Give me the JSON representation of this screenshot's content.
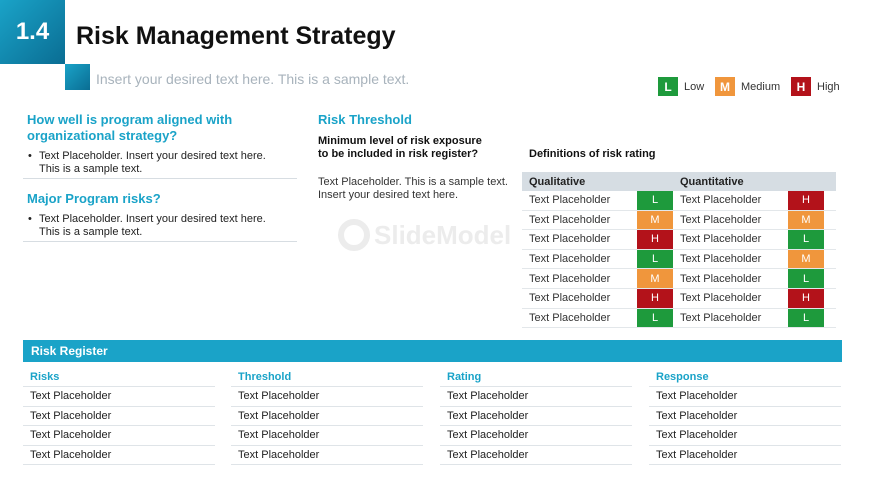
{
  "header": {
    "section_number": "1.4",
    "title": "Risk Management Strategy",
    "subtitle": "Insert your desired text here. This is a sample text."
  },
  "legend": [
    {
      "code": "L",
      "label": "Low",
      "color": "#1e9a3c"
    },
    {
      "code": "M",
      "label": "Medium",
      "color": "#f0963c"
    },
    {
      "code": "H",
      "label": "High",
      "color": "#b3121a"
    }
  ],
  "left": {
    "q1_heading": "How well is program aligned with organizational strategy?",
    "q1_text_line1": "Text Placeholder. Insert your desired text here.",
    "q1_text_line2": "This is a sample text.",
    "q2_heading": "Major Program risks?",
    "q2_text_line1": "Text Placeholder. Insert your desired text here.",
    "q2_text_line2": "This is a sample text."
  },
  "threshold": {
    "heading": "Risk Threshold",
    "sub_line1": "Minimum level of risk exposure",
    "sub_line2": "to be included in risk register?",
    "text_line1": "Text Placeholder. This is a sample text.",
    "text_line2": "Insert your desired text here."
  },
  "watermark": "SlideModel",
  "definitions": {
    "heading": "Definitions of risk rating",
    "col_qualitative": "Qualitative",
    "col_quantitative": "Quantitative",
    "rows": [
      {
        "qual_text": "Text Placeholder",
        "qual_rating": "L",
        "quant_text": "Text Placeholder",
        "quant_rating": "H"
      },
      {
        "qual_text": "Text Placeholder",
        "qual_rating": "M",
        "quant_text": "Text Placeholder",
        "quant_rating": "M"
      },
      {
        "qual_text": "Text Placeholder",
        "qual_rating": "H",
        "quant_text": "Text Placeholder",
        "quant_rating": "L"
      },
      {
        "qual_text": "Text Placeholder",
        "qual_rating": "L",
        "quant_text": "Text Placeholder",
        "quant_rating": "M"
      },
      {
        "qual_text": "Text Placeholder",
        "qual_rating": "M",
        "quant_text": "Text Placeholder",
        "quant_rating": "L"
      },
      {
        "qual_text": "Text Placeholder",
        "qual_rating": "H",
        "quant_text": "Text Placeholder",
        "quant_rating": "H"
      },
      {
        "qual_text": "Text Placeholder",
        "qual_rating": "L",
        "quant_text": "Text Placeholder",
        "quant_rating": "L"
      }
    ]
  },
  "register": {
    "title": "Risk Register",
    "columns": [
      {
        "head": "Risks",
        "cells": [
          "Text Placeholder",
          "Text Placeholder",
          "Text Placeholder",
          "Text Placeholder"
        ]
      },
      {
        "head": "Threshold",
        "cells": [
          "Text Placeholder",
          "Text Placeholder",
          "Text Placeholder",
          "Text Placeholder"
        ]
      },
      {
        "head": "Rating",
        "cells": [
          "Text Placeholder",
          "Text Placeholder",
          "Text Placeholder",
          "Text Placeholder"
        ]
      },
      {
        "head": "Response",
        "cells": [
          "Text Placeholder",
          "Text Placeholder",
          "Text Placeholder",
          "Text Placeholder"
        ]
      }
    ]
  }
}
